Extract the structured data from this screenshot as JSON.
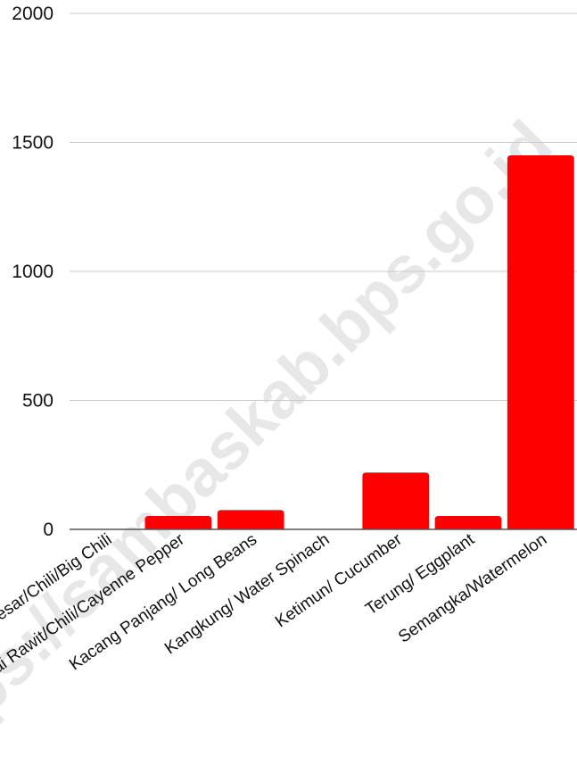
{
  "chart_data": {
    "type": "bar",
    "categories": [
      "Cabai Besar/Chili/Big Chili",
      "Cabai Rawit/Chili/Cayenne Pepper",
      "Kacang Panjang/ Long Beans",
      "Kangkung/ Water Spinach",
      "Ketimun/ Cucumber",
      "Terung/ Eggplant",
      "Semangka/Watermelon"
    ],
    "values": [
      0,
      52,
      75,
      0,
      220,
      52,
      1450
    ],
    "ylim": [
      0,
      2000
    ],
    "yticks": [
      "0",
      "500",
      "1000",
      "1500",
      "2000"
    ],
    "title": "",
    "xlabel": "",
    "ylabel": "",
    "grid": true,
    "bar_color": "#ff0000",
    "grid_color": "#c8c8c8"
  },
  "watermark": "https://sambaskab.bps.go.id"
}
